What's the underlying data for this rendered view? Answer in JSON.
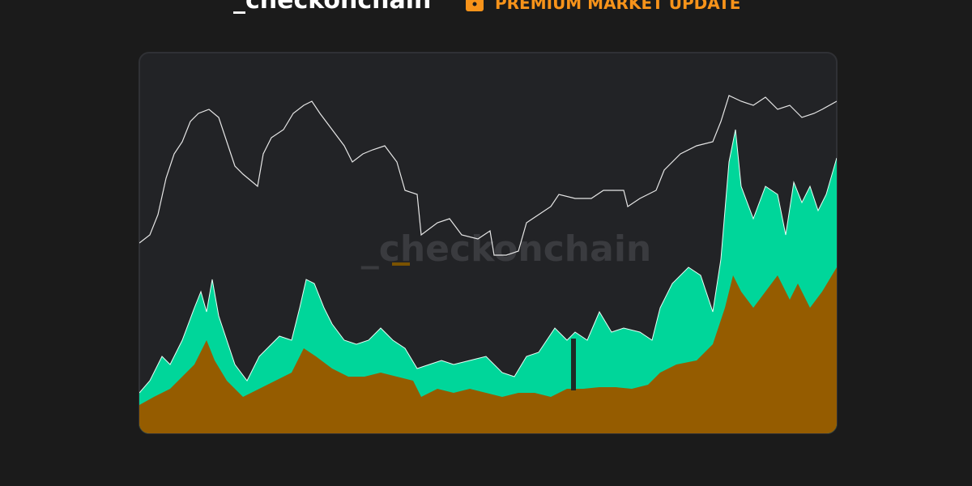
{
  "header": {
    "brand": "_checkonchain",
    "badge": "PREMIUM MARKET UPDATE"
  },
  "watermark": "_checkonchain"
}
